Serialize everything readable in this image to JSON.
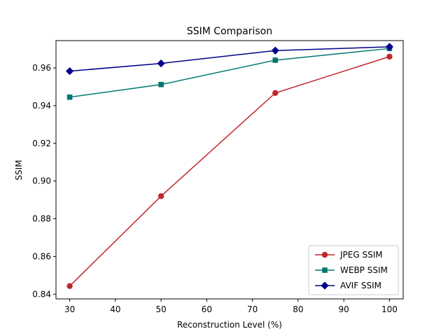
{
  "chart_data": {
    "type": "line",
    "title": "SSIM Comparison",
    "xlabel": "Reconstruction Level (%)",
    "ylabel": "SSIM",
    "xlim": [
      27,
      103
    ],
    "ylim": [
      0.8375,
      0.9745
    ],
    "xticks": [
      30,
      40,
      50,
      60,
      70,
      80,
      90,
      100
    ],
    "yticks": [
      0.84,
      0.86,
      0.88,
      0.9,
      0.92,
      0.94,
      0.96
    ],
    "ytick_labels": [
      "0.84",
      "0.86",
      "0.88",
      "0.90",
      "0.92",
      "0.94",
      "0.96"
    ],
    "x": [
      30,
      50,
      75,
      100
    ],
    "legend_position": "lower-right",
    "series": [
      {
        "name": "JPEG SSIM",
        "color": "#c0272d",
        "marker": "circle",
        "values": [
          0.8443,
          0.892,
          0.9467,
          0.966
        ]
      },
      {
        "name": "WEBP SSIM",
        "color": "#007872",
        "marker": "square",
        "values": [
          0.9445,
          0.9512,
          0.9641,
          0.9703
        ]
      },
      {
        "name": "AVIF SSIM",
        "color": "#00008b",
        "marker": "diamond",
        "values": [
          0.9583,
          0.9624,
          0.9692,
          0.9712
        ]
      }
    ]
  }
}
